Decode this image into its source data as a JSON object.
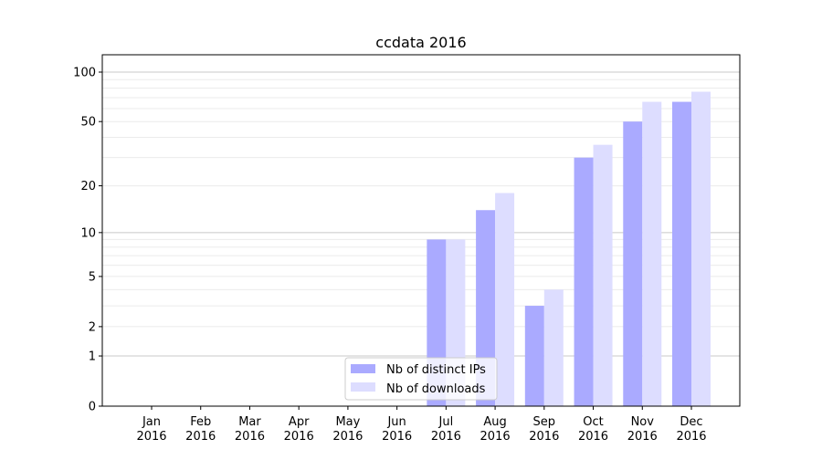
{
  "chart_data": {
    "type": "bar",
    "title": "ccdata 2016",
    "xlabel": "",
    "ylabel": "",
    "yscale": "log(1+y)",
    "ylim": [
      0,
      120
    ],
    "yticks": [
      0,
      1,
      2,
      5,
      10,
      20,
      50,
      100
    ],
    "grid": true,
    "legend_position": "lower-center",
    "categories": [
      "Jan\n2016",
      "Feb\n2016",
      "Mar\n2016",
      "Apr\n2016",
      "May\n2016",
      "Jun\n2016",
      "Jul\n2016",
      "Aug\n2016",
      "Sep\n2016",
      "Oct\n2016",
      "Nov\n2016",
      "Dec\n2016"
    ],
    "series": [
      {
        "name": "Nb of distinct IPs",
        "color": "#aaaaff",
        "values": [
          0,
          0,
          0,
          0,
          0,
          0,
          9,
          14,
          3,
          30,
          50,
          66
        ]
      },
      {
        "name": "Nb of downloads",
        "color": "#ddddff",
        "values": [
          0,
          0,
          0,
          0,
          0,
          0,
          9,
          18,
          4,
          36,
          66,
          76
        ]
      }
    ]
  }
}
